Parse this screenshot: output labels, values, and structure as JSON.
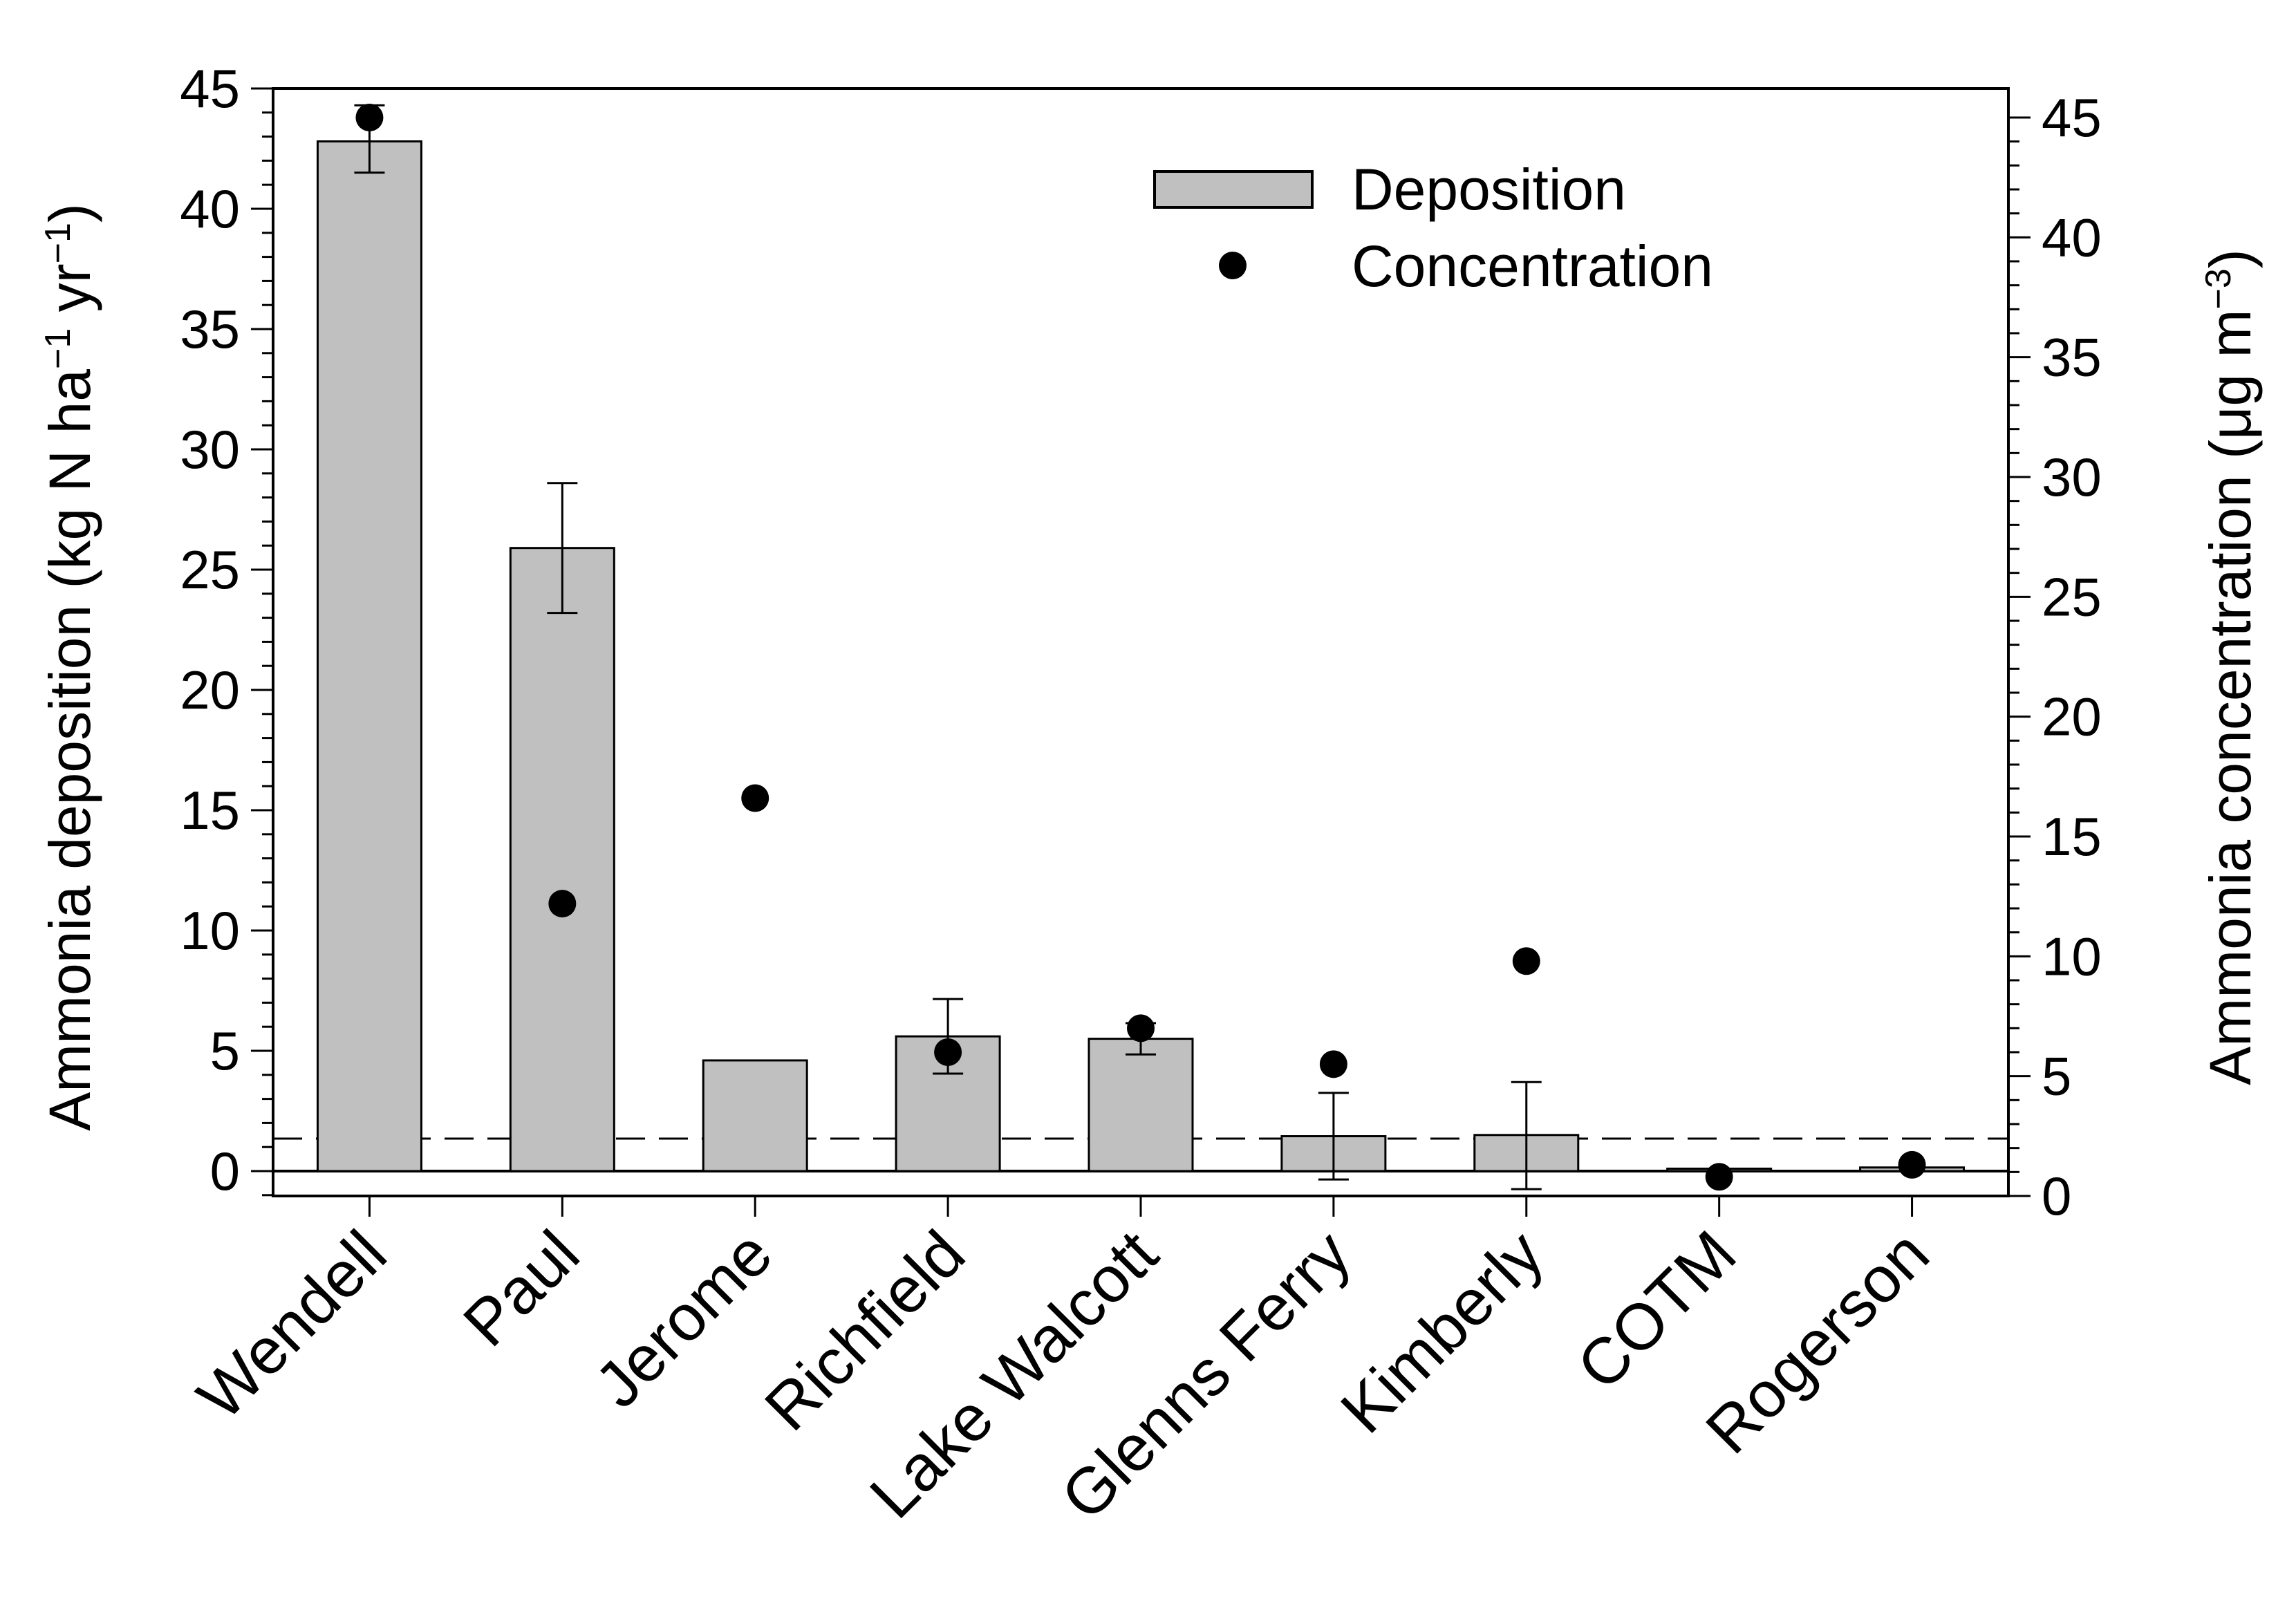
{
  "chart_data": {
    "type": "bar",
    "categories": [
      "Wendell",
      "Paul",
      "Jerome",
      "Richfield",
      "Lake Walcott",
      "Glenns Ferry",
      "Kimberly",
      "COTM",
      "Rogerson"
    ],
    "series": [
      {
        "name": "Deposition",
        "kind": "bar",
        "axis": "left",
        "values": [
          42.8,
          25.9,
          4.6,
          5.6,
          5.5,
          1.45,
          1.5,
          0.1,
          0.15
        ],
        "error_low": [
          41.5,
          23.2,
          null,
          4.05,
          4.85,
          -0.35,
          -0.75,
          null,
          null
        ],
        "error_high": [
          44.3,
          28.6,
          null,
          7.15,
          6.15,
          3.25,
          3.7,
          null,
          null
        ]
      },
      {
        "name": "Concentration",
        "kind": "scatter",
        "axis": "right",
        "values": [
          45.0,
          12.2,
          16.6,
          6.0,
          7.0,
          5.5,
          9.8,
          0.8,
          1.3
        ]
      }
    ],
    "threshold_left": 1.35,
    "ylim": [
      -1,
      45
    ],
    "y2lim": [
      0,
      45
    ],
    "yticks": [
      0,
      5,
      10,
      15,
      20,
      25,
      30,
      35,
      40,
      45
    ],
    "y2ticks": [
      0,
      5,
      10,
      15,
      20,
      25,
      30,
      35,
      40,
      45
    ],
    "ylabel": {
      "main": "Ammonia deposition (kg N ha",
      "sup1": "−1",
      "mid": " yr",
      "sup2": "−1",
      "end": ")"
    },
    "y2label": {
      "main": "Ammonia concentration (μg m",
      "sup": "−3",
      "end": ")"
    },
    "legend": {
      "position": "top-right",
      "items": [
        "Deposition",
        "Concentration"
      ]
    },
    "colors": {
      "bar": "#c0c0c0",
      "stroke": "#000000",
      "dot": "#000000"
    }
  }
}
